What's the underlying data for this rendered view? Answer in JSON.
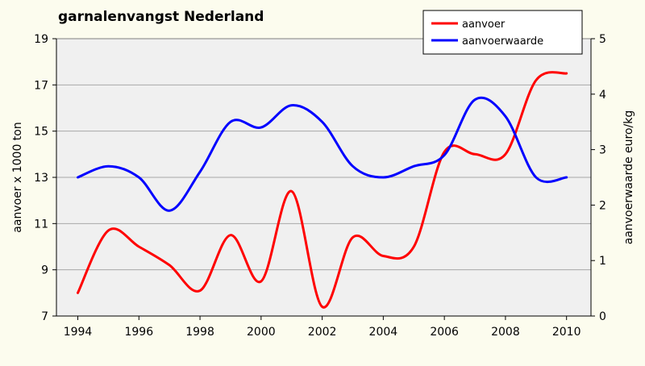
{
  "chart_data": {
    "type": "line",
    "title": "garnalenvangst Nederland",
    "xlabel": "",
    "ylabel": "aanvoer x 1000 ton",
    "y2label": "aanvoerwaarde euro/kg",
    "x": [
      1994,
      1995,
      1996,
      1997,
      1998,
      1999,
      2000,
      2001,
      2002,
      2003,
      2004,
      2005,
      2006,
      2007,
      2008,
      2009,
      2010
    ],
    "xticks": [
      "1994",
      "1996",
      "1998",
      "2000",
      "2002",
      "2004",
      "2006",
      "2008",
      "2010"
    ],
    "xlim": [
      1993.3,
      2010.8
    ],
    "ylim": [
      7,
      19
    ],
    "yticks": [
      "7",
      "9",
      "11",
      "13",
      "15",
      "17",
      "19"
    ],
    "y2lim": [
      0,
      5
    ],
    "y2ticks": [
      "0",
      "1",
      "2",
      "3",
      "4",
      "5"
    ],
    "grid": "horizontal",
    "legend_position": "top-right",
    "series": [
      {
        "name": "aanvoer",
        "axis": "left",
        "color": "#FF0000",
        "values": [
          8.0,
          10.7,
          10.0,
          9.2,
          8.1,
          10.5,
          8.5,
          12.4,
          7.4,
          10.4,
          9.6,
          10.0,
          14.1,
          14.0,
          14.0,
          17.2,
          17.5
        ]
      },
      {
        "name": "aanvoerwaarde",
        "axis": "right",
        "color": "#0000FF",
        "values": [
          2.5,
          2.7,
          2.5,
          1.9,
          2.6,
          3.5,
          3.4,
          3.8,
          3.5,
          2.7,
          2.5,
          2.7,
          2.9,
          3.9,
          3.6,
          2.5,
          2.5
        ]
      }
    ]
  }
}
